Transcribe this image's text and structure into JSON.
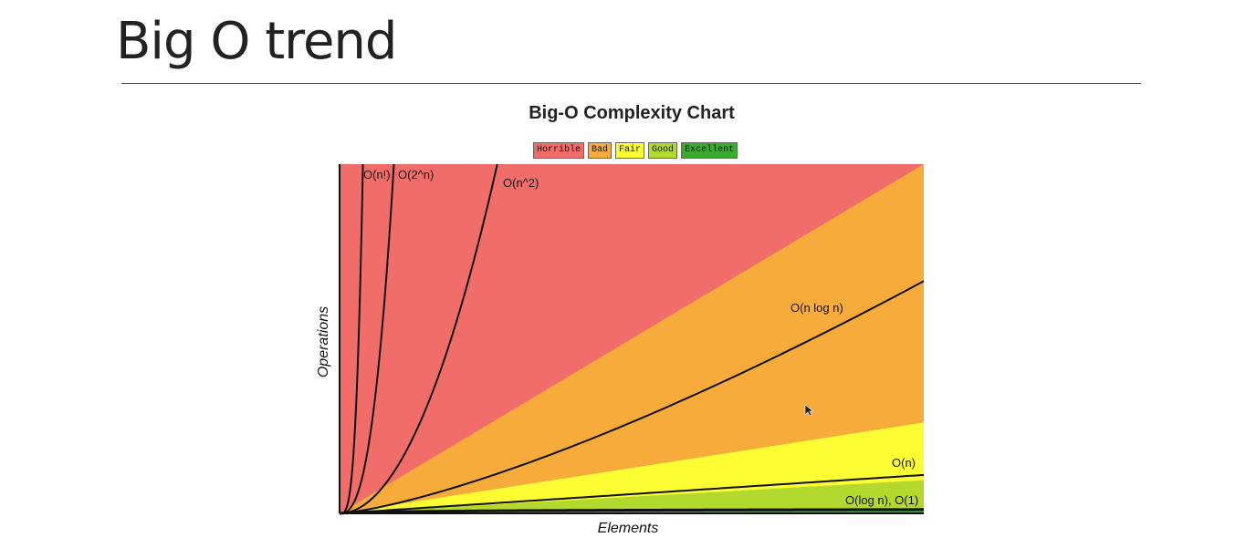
{
  "slide": {
    "title": "Big O trend"
  },
  "chart_data": {
    "type": "line",
    "title": "Big-O Complexity Chart",
    "xlabel": "Elements",
    "ylabel": "Operations",
    "xlim": [
      0,
      100
    ],
    "ylim": [
      0,
      100
    ],
    "legend": {
      "placement": "top-center",
      "items": [
        {
          "label": "Horrible",
          "color": "#f06d6a"
        },
        {
          "label": "Bad",
          "color": "#f6ab3a"
        },
        {
          "label": "Fair",
          "color": "#fdfd34"
        },
        {
          "label": "Good",
          "color": "#b3d92f"
        },
        {
          "label": "Excellent",
          "color": "#3bab2f"
        }
      ]
    },
    "regions": [
      {
        "name": "Horrible",
        "color": "#f06d6a",
        "boundary": "y = 100"
      },
      {
        "name": "Bad",
        "color": "#f6ab3a",
        "boundary": "y = n"
      },
      {
        "name": "Fair",
        "color": "#fdfd34",
        "boundary": "y = 0.26n"
      },
      {
        "name": "Good",
        "color": "#b3d92f",
        "boundary": "y = 0.095n"
      },
      {
        "name": "Excellent",
        "color": "#3bab2f",
        "boundary": "y = 0.01n"
      }
    ],
    "series": [
      {
        "name": "O(n!)",
        "x": [
          0,
          0.7,
          1.3,
          2.0,
          2.6,
          3.2,
          3.6,
          4.0
        ],
        "y": [
          0,
          2,
          5,
          10,
          20,
          40,
          70,
          100
        ]
      },
      {
        "name": "O(2^n)",
        "x": [
          0,
          1.5,
          3.0,
          4.5,
          6.0,
          7.2,
          8.3,
          9.3
        ],
        "y": [
          0,
          2,
          5,
          10,
          20,
          40,
          70,
          100
        ]
      },
      {
        "name": "O(n^2)",
        "x": [
          0,
          5,
          10,
          15,
          20,
          25,
          27
        ],
        "y": [
          0,
          3.4,
          13.7,
          30.9,
          54.9,
          85.8,
          100
        ]
      },
      {
        "name": "O(n log n)",
        "x": [
          0,
          10,
          20,
          30,
          40,
          50,
          60,
          70,
          80,
          90,
          100
        ],
        "y": [
          0,
          5,
          12,
          19.9,
          28.5,
          37.4,
          46.5,
          56,
          65.6,
          75.5,
          66.5
        ]
      },
      {
        "name": "O(n)",
        "x": [
          0,
          100
        ],
        "y": [
          0,
          11
        ]
      },
      {
        "name": "O(log n), O(1)",
        "x": [
          0,
          10,
          30,
          60,
          100
        ],
        "y": [
          0,
          0.5,
          0.8,
          1.0,
          1.1
        ]
      }
    ]
  }
}
